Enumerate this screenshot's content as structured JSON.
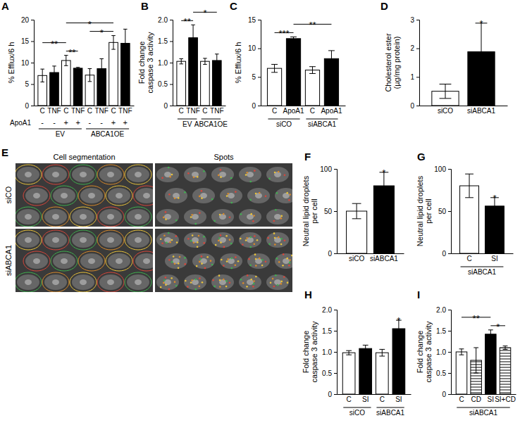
{
  "chart_data": [
    {
      "type": "bar",
      "title": "A",
      "ylabel": [
        "% Efflux/6 h"
      ],
      "categories": [
        "C",
        "TNF",
        "C",
        "TNF",
        "C",
        "TNF",
        "C",
        "TNF"
      ],
      "values": [
        7.0,
        7.7,
        10.5,
        8.7,
        7.1,
        8.6,
        14.7,
        14.5
      ],
      "errors": [
        1.5,
        1.5,
        1.2,
        0.2,
        1.5,
        2.3,
        1.6,
        3.3
      ],
      "colors": [
        "#ffffff",
        "#000000",
        "#ffffff",
        "#000000",
        "#ffffff",
        "#000000",
        "#ffffff",
        "#000000"
      ],
      "rows": [
        {
          "label": "ApoA1",
          "values": [
            "-",
            "-",
            "+",
            "+",
            "-",
            "-",
            "+",
            "+"
          ]
        }
      ],
      "groups": [
        {
          "label": "EV",
          "from": 0,
          "to": 3
        },
        {
          "label": "ABCA1OE",
          "from": 4,
          "to": 7
        }
      ],
      "annotations": [
        {
          "text": "**",
          "from": 2,
          "to": 3
        },
        {
          "text": "**",
          "from": 0,
          "to": 2
        },
        {
          "text": "*",
          "from": 4,
          "to": 6
        },
        {
          "text": "*",
          "from": 2,
          "to": 6
        }
      ],
      "ylim": [
        0,
        20
      ],
      "yticks": [
        0,
        5,
        10,
        15,
        20
      ]
    },
    {
      "type": "bar",
      "title": "B",
      "ylabel": [
        "Fold change",
        "caspase 3 activity"
      ],
      "categories": [
        "C",
        "TNF",
        "C",
        "TNF"
      ],
      "values": [
        1.03,
        1.58,
        1.03,
        1.05
      ],
      "errors": [
        0.06,
        0.3,
        0.07,
        0.15
      ],
      "colors": [
        "#ffffff",
        "#000000",
        "#ffffff",
        "#000000"
      ],
      "groups": [
        {
          "label": "EV",
          "from": 0,
          "to": 1
        },
        {
          "label": "ABCA1OE",
          "from": 2,
          "to": 3
        }
      ],
      "annotations": [
        {
          "text": "**",
          "from": 0,
          "to": 1
        },
        {
          "text": "*",
          "from": 1,
          "to": 3
        }
      ],
      "ylim": [
        0,
        2
      ],
      "yticks": [
        0,
        0.5,
        {
          "value": 1,
          "label": "1.0"
        },
        1.5,
        {
          "value": 2,
          "label": "2.0"
        }
      ]
    },
    {
      "type": "bar",
      "title": "C",
      "ylabel": [
        "% Efflux/6 h"
      ],
      "categories": [
        "C",
        "ApoA1",
        "C",
        "ApoA1"
      ],
      "values": [
        6.5,
        11.7,
        6.2,
        8.2
      ],
      "errors": [
        0.7,
        0.3,
        0.6,
        1.4
      ],
      "colors": [
        "#ffffff",
        "#000000",
        "#ffffff",
        "#000000"
      ],
      "groups": [
        {
          "label": "siCO",
          "from": 0,
          "to": 1
        },
        {
          "label": "siABCA1",
          "from": 2,
          "to": 3
        }
      ],
      "annotations": [
        {
          "text": "***",
          "from": 0,
          "to": 1
        },
        {
          "text": "**",
          "from": 1,
          "to": 3
        }
      ],
      "ylim": [
        0,
        15
      ],
      "yticks": [
        0,
        5,
        10,
        15
      ]
    },
    {
      "type": "bar",
      "title": "D",
      "ylabel": [
        "Cholesterol ester",
        "(µg/mg protein)"
      ],
      "categories": [
        "siCO",
        "siABCA1"
      ],
      "values": [
        0.5,
        1.88
      ],
      "errors": [
        0.25,
        1.0
      ],
      "colors": [
        "#ffffff",
        "#000000"
      ],
      "annotations": [
        {
          "text": "*",
          "from": 1,
          "to": 1
        }
      ],
      "ylim": [
        0,
        3
      ],
      "yticks": [
        0,
        1,
        2,
        3
      ]
    },
    {
      "type": "image",
      "title": "E",
      "columns": [
        "Cell segmentation",
        "Spots"
      ],
      "rows": [
        "siCO",
        "siABCA1"
      ]
    },
    {
      "type": "bar",
      "title": "F",
      "ylabel": [
        "Neutral lipid droplets",
        "per cell"
      ],
      "categories": [
        "siCO",
        "siABCA1"
      ],
      "values": [
        50,
        80
      ],
      "errors": [
        9,
        16
      ],
      "colors": [
        "#ffffff",
        "#000000"
      ],
      "annotations": [
        {
          "text": "*",
          "from": 1,
          "to": 1
        }
      ],
      "ylim": [
        0,
        100
      ],
      "yticks": [
        0,
        50,
        100
      ]
    },
    {
      "type": "bar",
      "title": "G",
      "ylabel": [
        "Neutral lipid droplets",
        "per cell"
      ],
      "categories": [
        "C",
        "SI"
      ],
      "values": [
        80,
        56
      ],
      "errors": [
        14,
        10
      ],
      "colors": [
        "#ffffff",
        "#000000"
      ],
      "groups": [
        {
          "label": "siABCA1",
          "from": 0,
          "to": 1
        }
      ],
      "annotations": [
        {
          "text": "*",
          "from": 1,
          "to": 1
        }
      ],
      "ylim": [
        0,
        100
      ],
      "yticks": [
        0,
        50,
        100
      ]
    },
    {
      "type": "bar",
      "title": "H",
      "ylabel": [
        "Fold change",
        "caspase 3 activity"
      ],
      "categories": [
        "C",
        "SI",
        "C",
        "SI"
      ],
      "values": [
        0.98,
        1.08,
        0.98,
        1.55
      ],
      "errors": [
        0.05,
        0.08,
        0.08,
        0.2
      ],
      "colors": [
        "#ffffff",
        "#000000",
        "#ffffff",
        "#000000"
      ],
      "groups": [
        {
          "label": "siCO",
          "from": 0,
          "to": 1
        },
        {
          "label": "siABCA1",
          "from": 2,
          "to": 3
        }
      ],
      "annotations": [
        {
          "text": "*",
          "from": 3,
          "to": 3
        }
      ],
      "ylim": [
        0,
        2
      ],
      "yticks": [
        0,
        0.5,
        {
          "value": 1,
          "label": "1.0"
        },
        1.5,
        {
          "value": 2,
          "label": "2.0"
        }
      ]
    },
    {
      "type": "bar",
      "title": "I",
      "ylabel": [
        "Fold change",
        "caspase 3 activity"
      ],
      "categories": [
        "C",
        "CD",
        "SI",
        "SI+CD"
      ],
      "values": [
        1.0,
        0.8,
        1.42,
        1.1
      ],
      "errors": [
        0.07,
        0.3,
        0.1,
        0.04
      ],
      "colors": [
        "#ffffff",
        "hatch",
        "#000000",
        "hatch"
      ],
      "groups": [
        {
          "label": "siABCA1",
          "from": 0,
          "to": 3
        }
      ],
      "annotations": [
        {
          "text": "*",
          "from": 2,
          "to": 3
        },
        {
          "text": "**",
          "from": 0,
          "to": 2
        }
      ],
      "ylim": [
        0,
        2
      ],
      "yticks": [
        0,
        0.5,
        {
          "value": 1,
          "label": "1.0"
        },
        1.5,
        {
          "value": 2,
          "label": "2.0"
        }
      ]
    }
  ]
}
